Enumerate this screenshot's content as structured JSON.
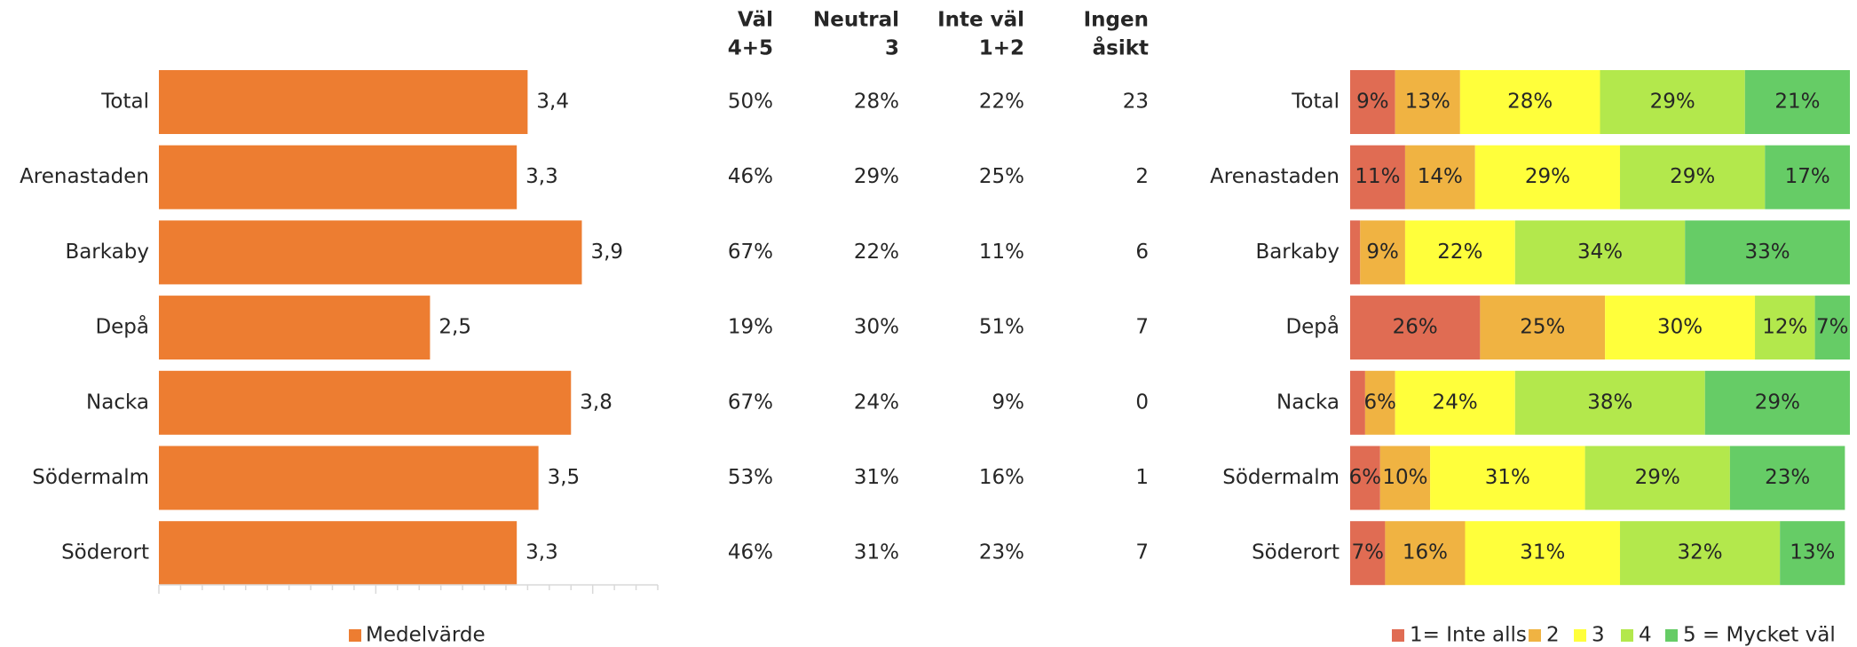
{
  "chart_data": [
    {
      "type": "bar",
      "orientation": "horizontal",
      "categories": [
        "Total",
        "Arenastaden",
        "Barkaby",
        "Depå",
        "Nacka",
        "Södermalm",
        "Söderort"
      ],
      "series": [
        {
          "name": "Medelvärde",
          "color": "#ED7D31",
          "values": [
            3.4,
            3.3,
            3.9,
            2.5,
            3.8,
            3.5,
            3.3
          ],
          "value_labels": [
            "3,4",
            "3,3",
            "3,9",
            "2,5",
            "3,8",
            "3,5",
            "3,3"
          ]
        }
      ],
      "xlim": [
        0,
        4.6
      ],
      "xticks": [
        0,
        2,
        4
      ],
      "xminor_ticks": [
        0.2,
        0.4,
        0.6,
        0.8,
        1,
        1.2,
        1.4,
        1.6,
        1.8,
        2.2,
        2.4,
        2.6,
        2.8,
        3,
        3.2,
        3.4,
        3.6,
        3.8,
        4.2,
        4.4,
        4.6
      ],
      "legend": "bottom"
    },
    {
      "type": "stacked-bar",
      "orientation": "horizontal",
      "categories": [
        "Total",
        "Arenastaden",
        "Barkaby",
        "Depå",
        "Nacka",
        "Södermalm",
        "Söderort"
      ],
      "xlim": [
        0,
        100
      ],
      "series": [
        {
          "name": "1= Inte alls",
          "color": "#E06C53",
          "values": [
            9,
            11,
            2,
            26,
            3,
            6,
            7
          ],
          "value_labels": [
            "9%",
            "11%",
            null,
            "26%",
            null,
            "6%",
            "7%"
          ]
        },
        {
          "name": "2",
          "color": "#F0B342",
          "values": [
            13,
            14,
            9,
            25,
            6,
            10,
            16
          ],
          "value_labels": [
            "13%",
            "14%",
            "9%",
            "25%",
            "6%",
            "10%",
            "16%"
          ]
        },
        {
          "name": "3",
          "color": "#FFFF3B",
          "values": [
            28,
            29,
            22,
            30,
            24,
            31,
            31
          ],
          "value_labels": [
            "28%",
            "29%",
            "22%",
            "30%",
            "24%",
            "31%",
            "31%"
          ]
        },
        {
          "name": "4",
          "color": "#B3E84C",
          "values": [
            29,
            29,
            34,
            12,
            38,
            29,
            32
          ],
          "value_labels": [
            "29%",
            "29%",
            "34%",
            "12%",
            "38%",
            "29%",
            "32%"
          ]
        },
        {
          "name": "5 = Mycket väl",
          "color": "#66CC66",
          "values": [
            21,
            17,
            33,
            7,
            29,
            23,
            13
          ],
          "value_labels": [
            "21%",
            "17%",
            "33%",
            "7%",
            "29%",
            "23%",
            "13%"
          ]
        }
      ],
      "legend": "bottom"
    }
  ],
  "table": {
    "header": [
      [
        "Väl",
        "4+5"
      ],
      [
        "Neutral",
        "3"
      ],
      [
        "Inte väl",
        "1+2"
      ],
      [
        "Ingen",
        "åsikt"
      ]
    ],
    "rows": [
      [
        "50%",
        "28%",
        "22%",
        "23"
      ],
      [
        "46%",
        "29%",
        "25%",
        "2"
      ],
      [
        "67%",
        "22%",
        "11%",
        "6"
      ],
      [
        "19%",
        "30%",
        "51%",
        "7"
      ],
      [
        "67%",
        "24%",
        "9%",
        "0"
      ],
      [
        "53%",
        "31%",
        "16%",
        "1"
      ],
      [
        "46%",
        "31%",
        "23%",
        "7"
      ]
    ]
  }
}
